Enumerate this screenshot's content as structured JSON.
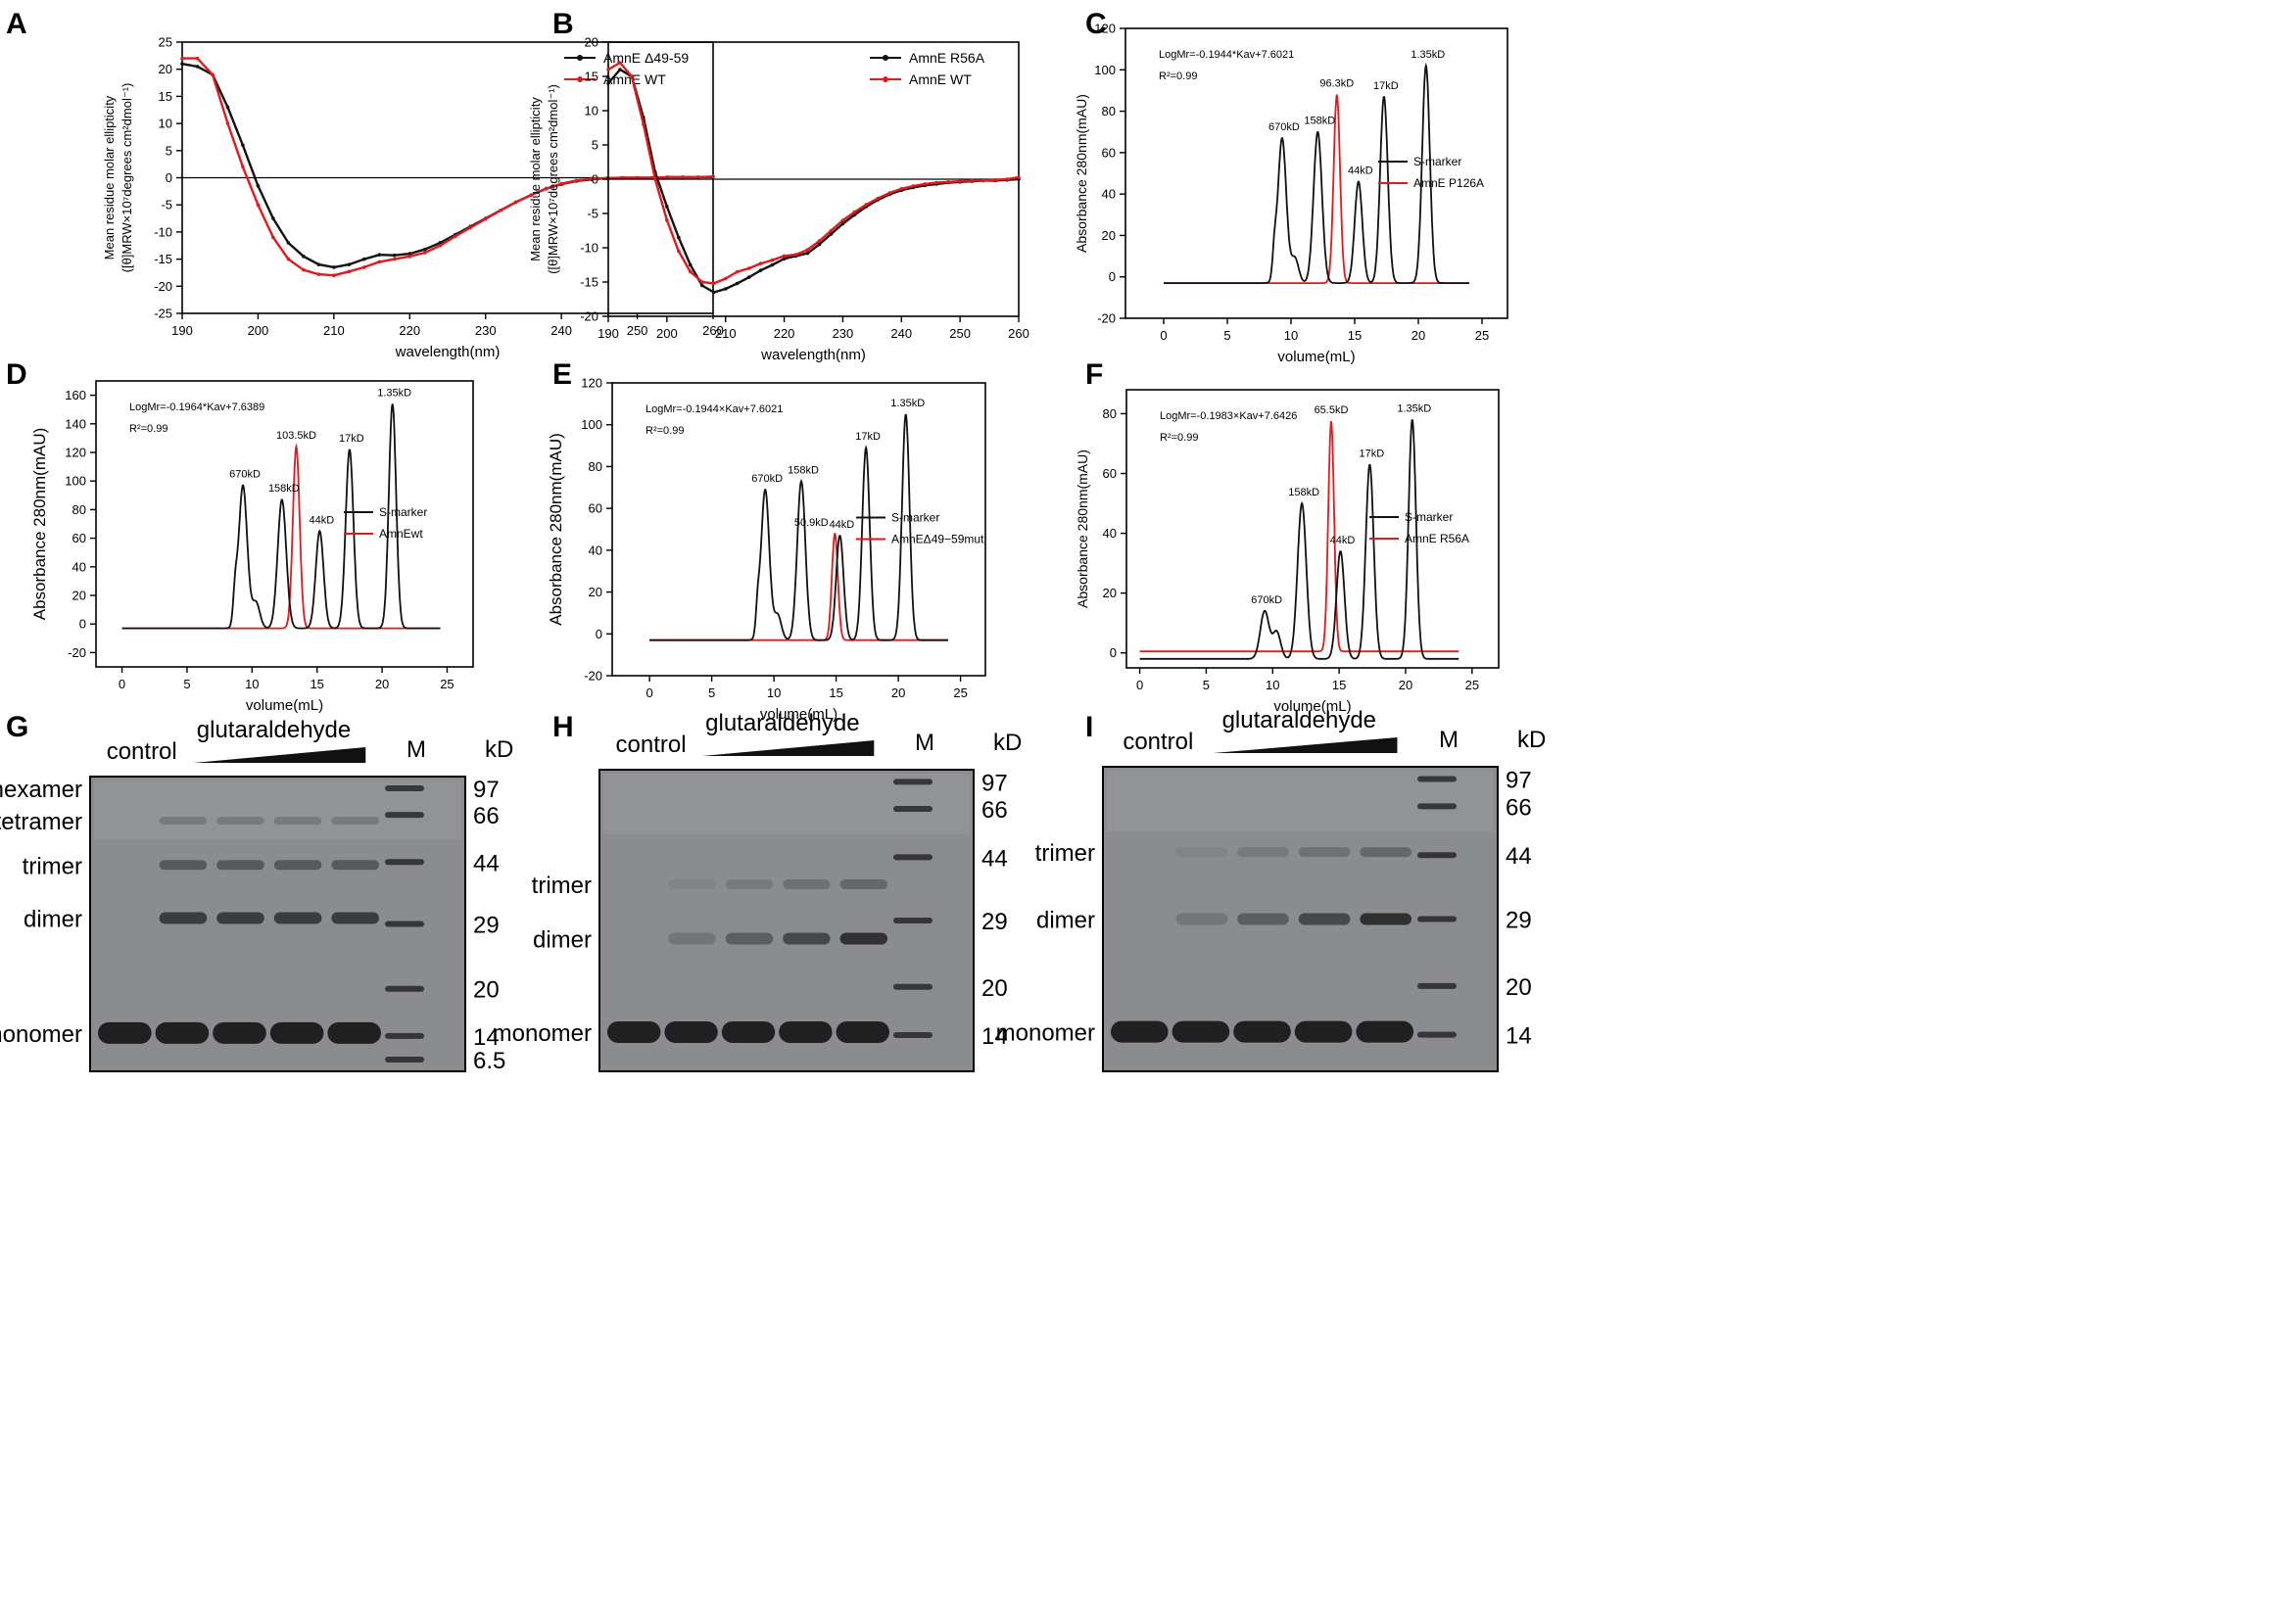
{
  "colors": {
    "black": "#111111",
    "red": "#e3191c",
    "gel_bg": "#8a8c8f",
    "band": "#1a1a1a"
  },
  "panel_letters": [
    "A",
    "B",
    "C",
    "D",
    "E",
    "F",
    "G",
    "H",
    "I"
  ],
  "chart_data": [
    {
      "id": "A",
      "type": "line",
      "xlabel": "wavelength(nm)",
      "ylabel_line1": "Mean residue molar ellipticity",
      "ylabel_line2": "([θ]MRW×10⁷degrees cm²dmol⁻¹)",
      "xlim": [
        190,
        260
      ],
      "ylim": [
        -25,
        25
      ],
      "xticks": [
        190,
        200,
        210,
        220,
        230,
        240,
        250,
        260
      ],
      "yticks": [
        -25,
        -20,
        -15,
        -10,
        -5,
        0,
        5,
        10,
        15,
        20,
        25
      ],
      "zero_line": true,
      "legend": [
        "AmnE Δ49-59",
        "AmnE WT"
      ],
      "series": [
        {
          "name": "AmnE Δ49-59",
          "color": "black",
          "x": [
            190,
            192,
            194,
            196,
            198,
            200,
            202,
            204,
            206,
            208,
            210,
            212,
            214,
            216,
            218,
            220,
            222,
            224,
            226,
            228,
            230,
            232,
            234,
            236,
            238,
            240,
            242,
            244,
            246,
            248,
            250,
            252,
            254,
            256,
            258,
            260
          ],
          "y": [
            21,
            20.5,
            19,
            13,
            6,
            -1.5,
            -7.5,
            -12,
            -14.5,
            -16,
            -16.5,
            -16,
            -15,
            -14.2,
            -14.3,
            -14,
            -13.2,
            -12,
            -10.5,
            -9,
            -7.5,
            -6,
            -4.5,
            -3.2,
            -2,
            -1.2,
            -0.6,
            -0.3,
            -0.1,
            0,
            0,
            0,
            0.1,
            0.1,
            0.1,
            0.2
          ]
        },
        {
          "name": "AmnE WT",
          "color": "red",
          "x": [
            190,
            192,
            194,
            196,
            198,
            200,
            202,
            204,
            206,
            208,
            210,
            212,
            214,
            216,
            218,
            220,
            222,
            224,
            226,
            228,
            230,
            232,
            234,
            236,
            238,
            240,
            242,
            244,
            246,
            248,
            250,
            252,
            254,
            256,
            258,
            260
          ],
          "y": [
            22,
            22,
            19,
            10,
            2,
            -5,
            -11,
            -15,
            -17,
            -17.8,
            -18,
            -17.3,
            -16.5,
            -15.5,
            -15,
            -14.5,
            -13.8,
            -12.5,
            -10.8,
            -9.2,
            -7.6,
            -6,
            -4.5,
            -3.2,
            -2,
            -1.1,
            -0.5,
            -0.2,
            -0.1,
            0,
            0,
            0,
            0.1,
            0.1,
            0.1,
            0.2
          ]
        }
      ]
    },
    {
      "id": "B",
      "type": "line",
      "xlabel": "wavelength(nm)",
      "ylabel_line1": "Mean residue molar ellipticity",
      "ylabel_line2": "([θ]MRW×10⁷degrees cm²dmol⁻¹)",
      "xlim": [
        190,
        260
      ],
      "ylim": [
        -20,
        20
      ],
      "xticks": [
        190,
        200,
        210,
        220,
        230,
        240,
        250,
        260
      ],
      "yticks": [
        -20,
        -15,
        -10,
        -5,
        0,
        5,
        10,
        15,
        20
      ],
      "zero_line": true,
      "legend": [
        "AmnE R56A",
        "AmnE WT"
      ],
      "series": [
        {
          "name": "AmnE R56A",
          "color": "black",
          "x": [
            190,
            192,
            194,
            196,
            198,
            200,
            202,
            204,
            206,
            208,
            210,
            212,
            214,
            216,
            218,
            220,
            222,
            224,
            226,
            228,
            230,
            232,
            234,
            236,
            238,
            240,
            242,
            244,
            246,
            248,
            250,
            252,
            254,
            256,
            258,
            260
          ],
          "y": [
            14,
            16,
            15,
            9,
            1,
            -4,
            -8.5,
            -12.5,
            -15.5,
            -16.5,
            -16,
            -15.2,
            -14.3,
            -13.3,
            -12.5,
            -11.6,
            -11.2,
            -10.8,
            -9.5,
            -8,
            -6.5,
            -5.2,
            -4,
            -3,
            -2.2,
            -1.6,
            -1.2,
            -0.9,
            -0.7,
            -0.5,
            -0.4,
            -0.3,
            -0.2,
            -0.2,
            -0.1,
            0
          ]
        },
        {
          "name": "AmnE WT",
          "color": "red",
          "x": [
            190,
            192,
            194,
            196,
            198,
            200,
            202,
            204,
            206,
            208,
            210,
            212,
            214,
            216,
            218,
            220,
            222,
            224,
            226,
            228,
            230,
            232,
            234,
            236,
            238,
            240,
            242,
            244,
            246,
            248,
            250,
            252,
            254,
            256,
            258,
            260
          ],
          "y": [
            16,
            17,
            15,
            8,
            0,
            -6,
            -10.5,
            -13.5,
            -15,
            -15.2,
            -14.5,
            -13.5,
            -13,
            -12.3,
            -11.8,
            -11.2,
            -11,
            -10.3,
            -9,
            -7.5,
            -6,
            -4.8,
            -3.7,
            -2.8,
            -2,
            -1.4,
            -1,
            -0.7,
            -0.5,
            -0.4,
            -0.3,
            -0.2,
            -0.2,
            -0.1,
            0,
            0.3
          ]
        }
      ]
    },
    {
      "id": "C",
      "type": "line",
      "xlabel": "volume(mL)",
      "ylabel": "Absorbance 280nm(mAU)",
      "xlim": [
        -3,
        27
      ],
      "ylim": [
        -20,
        120
      ],
      "xticks": [
        0,
        5,
        10,
        15,
        20,
        25
      ],
      "yticks": [
        -20,
        0,
        20,
        40,
        60,
        80,
        100,
        120
      ],
      "equation": "LogMr=-0.1944*Kav+7.6021",
      "r2": "R²=0.99",
      "legend": [
        "S-marker",
        "AmnE P126A"
      ],
      "peaks_black": [
        {
          "x": 9.3,
          "h": 70,
          "w": 0.33,
          "label": "670kD"
        },
        {
          "x": 12.1,
          "h": 73,
          "w": 0.33,
          "label": "158kD"
        },
        {
          "x": 15.3,
          "h": 49,
          "w": 0.3,
          "label": "44kD"
        },
        {
          "x": 17.3,
          "h": 90,
          "w": 0.3,
          "label": "17kD"
        },
        {
          "x": 20.6,
          "h": 105,
          "w": 0.3,
          "label": "1.35kD"
        }
      ],
      "shoulders_black": [
        {
          "x": 8.7,
          "h": 12,
          "w": 0.15
        },
        {
          "x": 10.3,
          "h": 12,
          "w": 0.3
        }
      ],
      "baseline_black": -3,
      "peaks_red": [
        {
          "x": 13.6,
          "h": 91,
          "w": 0.25,
          "label": "96.3kD"
        }
      ],
      "baseline_red": -3,
      "x_end": 24
    },
    {
      "id": "D",
      "type": "line",
      "xlabel": "volume(mL)",
      "ylabel": "Absorbance 280nm(mAU)",
      "xlim": [
        -2,
        27
      ],
      "ylim": [
        -30,
        170
      ],
      "xticks": [
        0,
        5,
        10,
        15,
        20,
        25
      ],
      "yticks": [
        -20,
        0,
        20,
        40,
        60,
        80,
        100,
        120,
        140,
        160
      ],
      "equation": "LogMr=-0.1964*Kav+7.6389",
      "r2": "R²=0.99",
      "legend": [
        "S-marker",
        "AmnEwt"
      ],
      "peaks_black": [
        {
          "x": 9.3,
          "h": 100,
          "w": 0.33,
          "label": "670kD"
        },
        {
          "x": 12.3,
          "h": 90,
          "w": 0.33,
          "label": "158kD"
        },
        {
          "x": 15.2,
          "h": 68,
          "w": 0.3,
          "label": "44kD"
        },
        {
          "x": 17.5,
          "h": 125,
          "w": 0.3,
          "label": "17kD"
        },
        {
          "x": 20.8,
          "h": 157,
          "w": 0.28,
          "label": "1.35kD"
        }
      ],
      "shoulders_black": [
        {
          "x": 8.7,
          "h": 20,
          "w": 0.15
        },
        {
          "x": 10.3,
          "h": 18,
          "w": 0.3
        }
      ],
      "baseline_black": -3,
      "peaks_red": [
        {
          "x": 13.4,
          "h": 127,
          "w": 0.26,
          "label": "103.5kD"
        }
      ],
      "baseline_red": -3,
      "x_end": 24.5
    },
    {
      "id": "E",
      "type": "line",
      "xlabel": "volume(mL)",
      "ylabel": "Absorbance 280nm(mAU)",
      "xlim": [
        -3,
        27
      ],
      "ylim": [
        -20,
        120
      ],
      "xticks": [
        0,
        5,
        10,
        15,
        20,
        25
      ],
      "yticks": [
        -20,
        0,
        20,
        40,
        60,
        80,
        100,
        120
      ],
      "equation": "LogMr=-0.1944×Kav+7.6021",
      "r2": "R²=0.99",
      "legend": [
        "S-marker",
        "AmnEΔ49−59mut"
      ],
      "peaks_black": [
        {
          "x": 9.3,
          "h": 72,
          "w": 0.33,
          "label": "670kD"
        },
        {
          "x": 12.2,
          "h": 76,
          "w": 0.33,
          "label": "158kD"
        },
        {
          "x": 15.3,
          "h": 50,
          "w": 0.3,
          "label": "44kD"
        },
        {
          "x": 17.4,
          "h": 92,
          "w": 0.3,
          "label": "17kD"
        },
        {
          "x": 20.6,
          "h": 108,
          "w": 0.3,
          "label": "1.35kD"
        }
      ],
      "shoulders_black": [
        {
          "x": 8.7,
          "h": 12,
          "w": 0.15
        },
        {
          "x": 10.3,
          "h": 12,
          "w": 0.3
        }
      ],
      "baseline_black": -3,
      "peaks_red": [
        {
          "x": 14.9,
          "h": 51,
          "w": 0.24,
          "label": "50.9kD"
        }
      ],
      "baseline_red": -3,
      "x_end": 24
    },
    {
      "id": "F",
      "type": "line",
      "xlabel": "volume(mL)",
      "ylabel": "Absorbance 280nm(mAU)",
      "xlim": [
        -1,
        27
      ],
      "ylim": [
        -5,
        88
      ],
      "xticks": [
        0,
        5,
        10,
        15,
        20,
        25
      ],
      "yticks": [
        0,
        20,
        40,
        60,
        80
      ],
      "equation": "LogMr=-0.1983×Kav+7.6426",
      "r2": "R²=0.99",
      "legend": [
        "S-marker",
        "AmnE R56A"
      ],
      "peaks_black": [
        {
          "x": 9.4,
          "h": 16,
          "w": 0.33,
          "label": "670kD"
        },
        {
          "x": 12.2,
          "h": 52,
          "w": 0.33,
          "label": "158kD"
        },
        {
          "x": 15.1,
          "h": 36,
          "w": 0.3,
          "label": "44kD"
        },
        {
          "x": 17.3,
          "h": 65,
          "w": 0.3,
          "label": "17kD"
        },
        {
          "x": 20.5,
          "h": 80,
          "w": 0.28,
          "label": "1.35kD"
        }
      ],
      "shoulders_black": [
        {
          "x": 10.3,
          "h": 9,
          "w": 0.3
        }
      ],
      "baseline_black": -2,
      "peaks_red": [
        {
          "x": 14.4,
          "h": 77,
          "w": 0.22,
          "label": "65.5kD"
        }
      ],
      "baseline_red": 0.5,
      "x_end": 24
    }
  ],
  "gels": [
    {
      "id": "G",
      "treatment": "glutaraldehyde",
      "control": "control",
      "m": "M",
      "kd": "kD",
      "bands": [
        "hexamer",
        "tetramer",
        "trimer",
        "dimer",
        "monomer"
      ],
      "markers": [
        "97",
        "66",
        "44",
        "29",
        "20",
        "14",
        "6.5"
      ]
    },
    {
      "id": "H",
      "treatment": "glutaraldehyde",
      "control": "control",
      "m": "M",
      "kd": "kD",
      "bands": [
        "trimer",
        "dimer",
        "monomer"
      ],
      "markers": [
        "97",
        "66",
        "44",
        "29",
        "20",
        "14"
      ]
    },
    {
      "id": "I",
      "treatment": "glutaraldehyde",
      "control": "control",
      "m": "M",
      "kd": "kD",
      "bands": [
        "trimer",
        "dimer",
        "monomer"
      ],
      "markers": [
        "97",
        "66",
        "44",
        "29",
        "20",
        "14"
      ]
    }
  ]
}
